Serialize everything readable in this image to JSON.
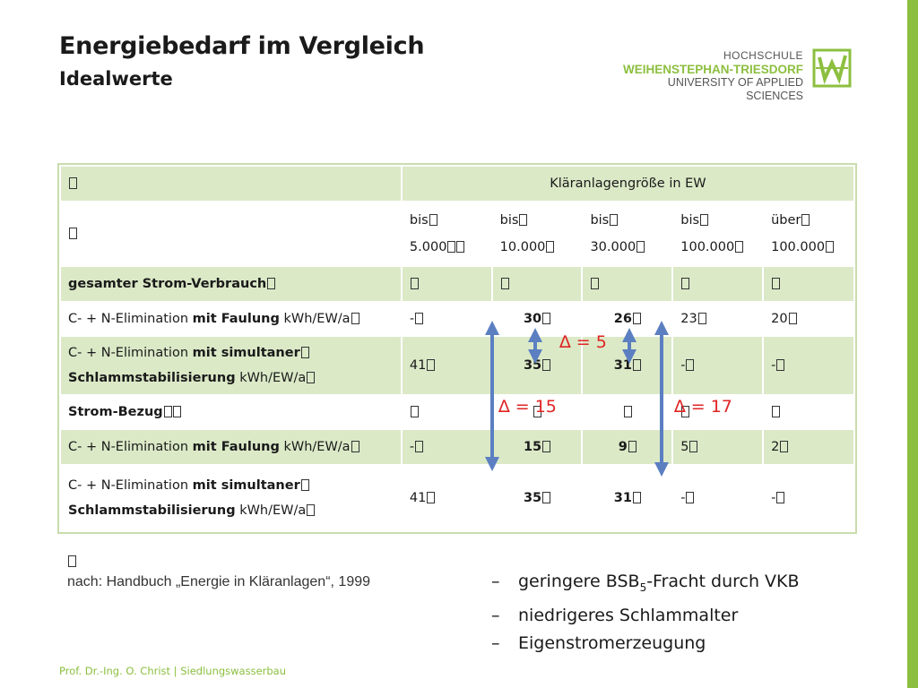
{
  "header": {
    "title": "Energiebedarf im Vergleich",
    "subtitle": "Idealwerte"
  },
  "logo": {
    "line1": "HOCHSCHULE",
    "line2": "WEIHENSTEPHAN-TRIESDORF",
    "line3": "UNIVERSITY OF APPLIED SCIENCES",
    "accent": "#8cbf3f"
  },
  "table": {
    "size_header": "Kläranlagengröße in EW",
    "columns": [
      {
        "l1": "bis",
        "l2": "5.000"
      },
      {
        "l1": "bis",
        "l2": "10.000"
      },
      {
        "l1": "bis",
        "l2": "30.000"
      },
      {
        "l1": "bis",
        "l2": "100.000"
      },
      {
        "l1": "über",
        "l2": "100.000"
      }
    ],
    "section1": "gesamter Strom-Verbrauch",
    "section2": "Strom-Bezug",
    "rows": {
      "r1": {
        "label_pre": "C- + N-Elimination ",
        "label_bold1": "mit Faulung",
        "label_post": " kWh/EW/a",
        "values": [
          "-",
          "30",
          "26",
          "23",
          "20"
        ]
      },
      "r2": {
        "label_pre": "C- + N-Elimination ",
        "label_bold1": "mit simultaner",
        "label_line2_bold": "Schlammstabilisierung",
        "label_post": " kWh/EW/a",
        "values": [
          "41",
          "35",
          "31",
          "-",
          "-"
        ]
      },
      "r3": {
        "label_pre": "C- + N-Elimination ",
        "label_bold1": "mit Faulung",
        "label_post": " kWh/EW/a",
        "values": [
          "-",
          "15",
          "9",
          "5",
          "2"
        ]
      },
      "r4": {
        "label_pre": "C- + N-Elimination ",
        "label_bold1": "mit simultaner",
        "label_line2_bold": "Schlammstabilisierung",
        "label_post": " kWh/EW/a",
        "values": [
          "41",
          "35",
          "31",
          "-",
          "-"
        ]
      }
    }
  },
  "annotations": {
    "delta5": "∆ = 5",
    "delta15": "∆ = 15",
    "delta17": "∆ = 17",
    "arrow_color": "#5b7fc1",
    "text_color": "#e02424"
  },
  "source": "nach: Handbuch „Energie in Kläranlagen“, 1999",
  "bullets": [
    {
      "dash": "–",
      "pre": "geringere BSB",
      "sub": "5",
      "post": "-Fracht durch VKB"
    },
    {
      "dash": "–",
      "pre": "niedrigeres Schlammalter"
    },
    {
      "dash": "–",
      "pre": "Eigenstromerzeugung"
    }
  ],
  "footer": "Prof. Dr.-Ing. O. Christ | Siedlungswasserbau"
}
